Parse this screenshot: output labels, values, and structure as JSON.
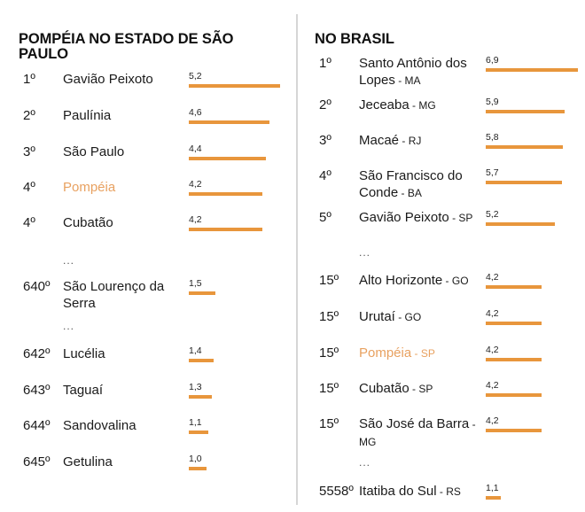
{
  "colors": {
    "bar": "#e8963c",
    "highlight": "#e8a160",
    "text": "#1a1a1a",
    "divider": "#d6d6d6"
  },
  "chart_data": [
    {
      "type": "bar",
      "orientation": "horizontal",
      "title": "POMPÉIA NO ESTADO DE SÃO PAULO",
      "xlim": [
        0,
        5.2
      ],
      "rows": [
        {
          "rank": "1º",
          "name": "Gavião Peixoto",
          "uf": "",
          "value": 5.2,
          "label": "5,2",
          "highlight": false
        },
        {
          "rank": "2º",
          "name": "Paulínia",
          "uf": "",
          "value": 4.6,
          "label": "4,6",
          "highlight": false
        },
        {
          "rank": "3º",
          "name": "São Paulo",
          "uf": "",
          "value": 4.4,
          "label": "4,4",
          "highlight": false
        },
        {
          "rank": "4º",
          "name": "Pompéia",
          "uf": "",
          "value": 4.2,
          "label": "4,2",
          "highlight": true
        },
        {
          "rank": "4º",
          "name": "Cubatão",
          "uf": "",
          "value": 4.2,
          "label": "4,2",
          "highlight": false
        },
        {
          "ellipsis": "..."
        },
        {
          "rank": "640º",
          "name": "São Lourenço da Serra",
          "uf": "",
          "value": 1.5,
          "label": "1,5",
          "highlight": false
        },
        {
          "ellipsis": "..."
        },
        {
          "rank": "642º",
          "name": "Lucélia",
          "uf": "",
          "value": 1.4,
          "label": "1,4",
          "highlight": false
        },
        {
          "rank": "643º",
          "name": "Taguaí",
          "uf": "",
          "value": 1.3,
          "label": "1,3",
          "highlight": false
        },
        {
          "rank": "644º",
          "name": "Sandovalina",
          "uf": "",
          "value": 1.1,
          "label": "1,1",
          "highlight": false
        },
        {
          "rank": "645º",
          "name": "Getulina",
          "uf": "",
          "value": 1.0,
          "label": "1,0",
          "highlight": false
        }
      ]
    },
    {
      "type": "bar",
      "orientation": "horizontal",
      "title": "NO BRASIL",
      "xlim": [
        0,
        6.9
      ],
      "rows": [
        {
          "rank": "1º",
          "name": "Santo Antônio dos Lopes",
          "uf": "MA",
          "value": 6.9,
          "label": "6,9",
          "highlight": false
        },
        {
          "rank": "2º",
          "name": "Jeceaba",
          "uf": "MG",
          "value": 5.9,
          "label": "5,9",
          "highlight": false
        },
        {
          "rank": "3º",
          "name": "Macaé",
          "uf": "RJ",
          "value": 5.8,
          "label": "5,8",
          "highlight": false
        },
        {
          "rank": "4º",
          "name": "São Francisco do Conde",
          "uf": "BA",
          "value": 5.7,
          "label": "5,7",
          "highlight": false
        },
        {
          "rank": "5º",
          "name": "Gavião Peixoto",
          "uf": "SP",
          "value": 5.2,
          "label": "5,2",
          "highlight": false
        },
        {
          "ellipsis": "..."
        },
        {
          "rank": "15º",
          "name": "Alto Horizonte",
          "uf": "GO",
          "value": 4.2,
          "label": "4,2",
          "highlight": false
        },
        {
          "rank": "15º",
          "name": "Urutaí",
          "uf": "GO",
          "value": 4.2,
          "label": "4,2",
          "highlight": false
        },
        {
          "rank": "15º",
          "name": "Pompéia",
          "uf": "SP",
          "value": 4.2,
          "label": "4,2",
          "highlight": true
        },
        {
          "rank": "15º",
          "name": "Cubatão",
          "uf": "SP",
          "value": 4.2,
          "label": "4,2",
          "highlight": false
        },
        {
          "rank": "15º",
          "name": "São José da Barra",
          "uf": "MG",
          "value": 4.2,
          "label": "4,2",
          "highlight": false
        },
        {
          "ellipsis": "..."
        },
        {
          "rank": "5558º",
          "name": "Itatiba do Sul",
          "uf": "RS",
          "value": 1.1,
          "label": "1,1",
          "highlight": false
        }
      ]
    }
  ]
}
